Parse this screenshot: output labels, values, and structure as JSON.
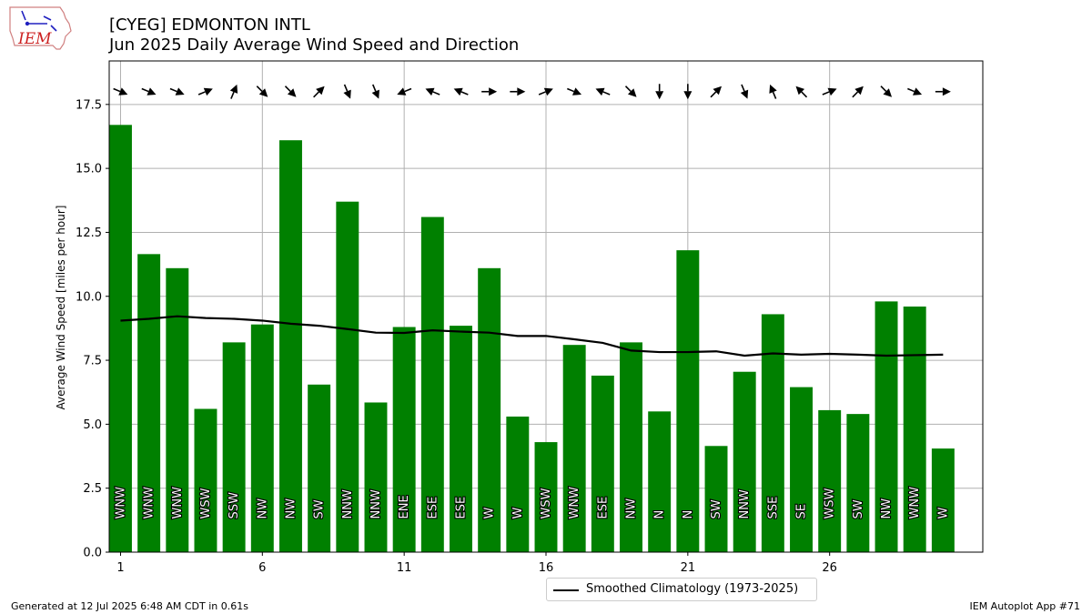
{
  "header": {
    "title_line1": "[CYEG] EDMONTON INTL",
    "title_line2": "Jun 2025 Daily Average Wind Speed and Direction"
  },
  "logo": {
    "text": "IEM",
    "icon": "iem-logo-icon"
  },
  "footer": {
    "left": "Generated at 12 Jul 2025 6:48 AM CDT in 0.61s",
    "right": "IEM Autoplot App #71"
  },
  "legend": {
    "label": "Smoothed Climatology (1973-2025)"
  },
  "colors": {
    "bars": "#008000",
    "climatology": "#000000",
    "grid": "#b0b0b0",
    "arrows": "#000000"
  },
  "chart_data": {
    "type": "bar",
    "ylabel": "Average Wind Speed [miles per hour]",
    "xlabel": "",
    "ylim": [
      0,
      19.2
    ],
    "xlim": [
      0.6,
      31.4
    ],
    "grid": true,
    "legend_position": "bottom-center",
    "xticks": [
      1,
      6,
      11,
      16,
      21,
      26
    ],
    "yticks": [
      0.0,
      2.5,
      5.0,
      7.5,
      10.0,
      12.5,
      15.0,
      17.5
    ],
    "days": [
      1,
      2,
      3,
      4,
      5,
      6,
      7,
      8,
      9,
      10,
      11,
      12,
      13,
      14,
      15,
      16,
      17,
      18,
      19,
      20,
      21,
      22,
      23,
      24,
      25,
      26,
      27,
      28,
      29,
      30
    ],
    "series": [
      {
        "name": "Average Wind Speed",
        "type": "bar",
        "values": [
          16.7,
          11.65,
          11.1,
          5.6,
          8.2,
          8.9,
          16.1,
          6.55,
          13.7,
          5.85,
          8.8,
          13.1,
          8.85,
          11.1,
          5.3,
          4.3,
          8.1,
          6.9,
          8.2,
          5.5,
          11.8,
          4.15,
          7.05,
          9.3,
          6.45,
          5.55,
          5.4,
          9.8,
          9.6,
          4.05
        ]
      },
      {
        "name": "Smoothed Climatology (1973-2025)",
        "type": "line",
        "values": [
          9.05,
          9.12,
          9.22,
          9.15,
          9.12,
          9.05,
          8.93,
          8.85,
          8.72,
          8.58,
          8.57,
          8.67,
          8.62,
          8.58,
          8.45,
          8.45,
          8.32,
          8.18,
          7.88,
          7.82,
          7.82,
          7.85,
          7.68,
          7.77,
          7.72,
          7.75,
          7.72,
          7.68,
          7.7,
          7.72
        ]
      }
    ],
    "directions": [
      "WNW",
      "WNW",
      "WNW",
      "WSW",
      "SSW",
      "NW",
      "NW",
      "SW",
      "NNW",
      "NNW",
      "ENE",
      "ESE",
      "ESE",
      "W",
      "W",
      "WSW",
      "WNW",
      "ESE",
      "NW",
      "N",
      "N",
      "SW",
      "NNW",
      "SSE",
      "SE",
      "WSW",
      "SW",
      "NW",
      "WNW",
      "W"
    ],
    "arrow_level": 18.0
  }
}
